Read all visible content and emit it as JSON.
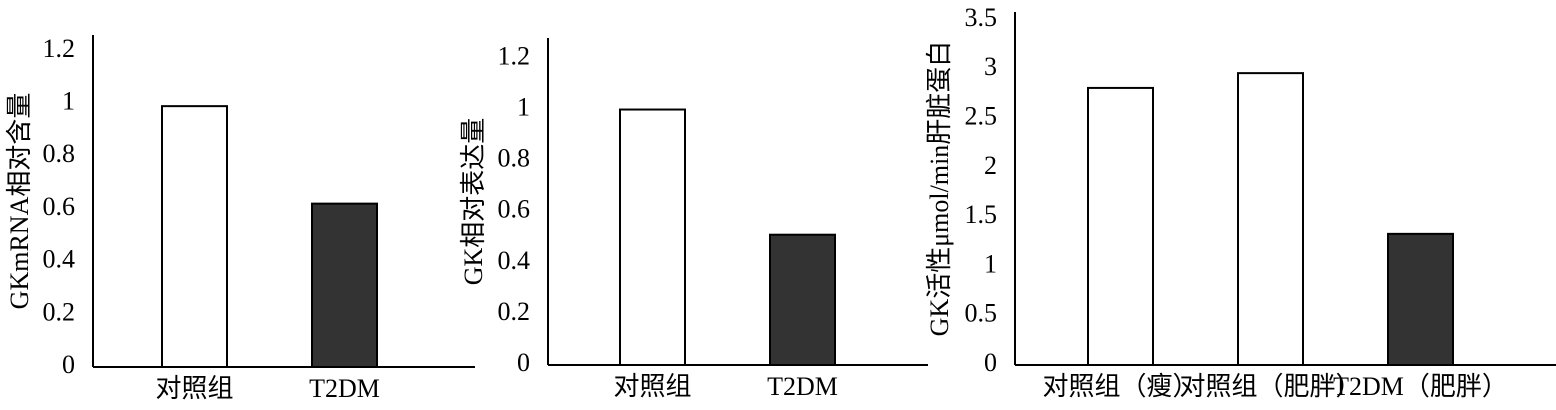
{
  "chart_data": [
    {
      "type": "bar",
      "y_label": "GKmRNA相对含量",
      "categories": [
        "对照组",
        "T2DM"
      ],
      "values": [
        0.99,
        0.62
      ],
      "colors": [
        "#ffffff",
        "#333333"
      ],
      "ylim": [
        0,
        1.26
      ],
      "yticks": [
        0,
        0.2,
        0.4,
        0.6,
        0.8,
        1,
        1.2
      ]
    },
    {
      "type": "bar",
      "y_label": "GK相对表达量",
      "categories": [
        "对照组",
        "T2DM"
      ],
      "values": [
        1.0,
        0.51
      ],
      "colors": [
        "#ffffff",
        "#333333"
      ],
      "ylim": [
        0,
        1.28
      ],
      "yticks": [
        0,
        0.2,
        0.4,
        0.6,
        0.8,
        1,
        1.2
      ]
    },
    {
      "type": "bar",
      "y_label": "GK活性μmol/min肝脏蛋白",
      "categories": [
        "对照组（瘦）",
        "对照组（肥胖）",
        "T2DM（肥胖）"
      ],
      "values": [
        2.81,
        2.96,
        1.33
      ],
      "colors": [
        "#ffffff",
        "#ffffff",
        "#333333"
      ],
      "ylim": [
        0,
        3.58
      ],
      "yticks": [
        0,
        0.5,
        1,
        1.5,
        2,
        2.5,
        3,
        3.5
      ]
    }
  ]
}
